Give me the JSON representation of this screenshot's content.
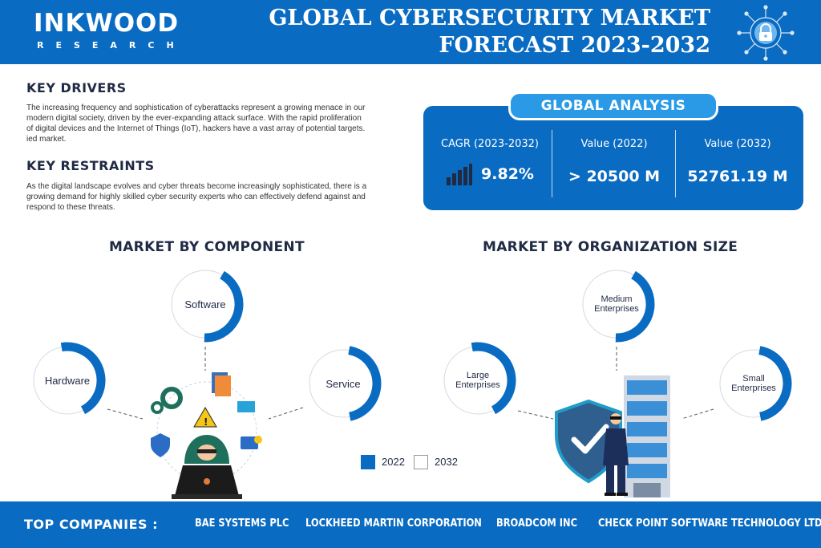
{
  "header": {
    "brand_name": "INKWOOD",
    "brand_sub": "RESEARCH",
    "title_line1": "GLOBAL CYBERSECURITY MARKET",
    "title_line2": "FORECAST 2023-2032",
    "icon": "lock-network-icon"
  },
  "key_drivers": {
    "heading": "KEY DRIVERS",
    "text": "The increasing frequency and sophistication of cyberattacks represent a growing menace in our modern digital society, driven by the ever-expanding attack surface. With the rapid proliferation of digital devices and the Internet of Things (IoT), hackers have a vast array of potential targets. ied market."
  },
  "key_restraints": {
    "heading": "KEY RESTRAINTS",
    "text": "As the digital landscape evolves and cyber threats become increasingly sophisticated, there is a growing demand for highly skilled cyber security experts who can effectively defend against and respond to these threats."
  },
  "global_analysis": {
    "heading": "GLOBAL ANALYSIS",
    "cagr_label": "CAGR (2023-2032)",
    "cagr_value": "9.82%",
    "value_2022_label": "Value (2022)",
    "value_2022": "> 20500 M",
    "value_2032_label": "Value (2032)",
    "value_2032": "52761.19 M",
    "icon": "bar-growth-icon"
  },
  "market_by_component": {
    "heading": "MARKET BY COMPONENT",
    "segments": [
      {
        "label": "Software",
        "share": 0.42
      },
      {
        "label": "Hardware",
        "share": 0.45
      },
      {
        "label": "Service",
        "share": 0.44
      }
    ],
    "illustration": "hacker-laptop-icon"
  },
  "market_by_organization": {
    "heading": "MARKET BY ORGANIZATION SIZE",
    "segments": [
      {
        "label": "Medium Enterprises",
        "share": 0.42
      },
      {
        "label": "Large Enterprises",
        "share": 0.45
      },
      {
        "label": "Small Enterprises",
        "share": 0.44
      }
    ],
    "illustration": "security-guard-building-icon"
  },
  "legend": {
    "items": [
      {
        "label": "2022",
        "color": "#0a6bc2"
      },
      {
        "label": "2032",
        "color": "#ffffff"
      }
    ]
  },
  "footer": {
    "label": "TOP COMPANIES :",
    "companies": [
      "BAE SYSTEMS PLC",
      "LOCKHEED MARTIN CORPORATION",
      "BROADCOM INC",
      "CHECK POINT SOFTWARE TECHNOLOGY LTD"
    ]
  },
  "colors": {
    "primary": "#0a6bc2",
    "accent": "#2b9ae6",
    "text_dark": "#1f2a44"
  }
}
